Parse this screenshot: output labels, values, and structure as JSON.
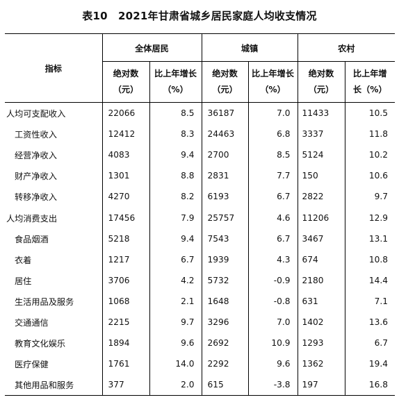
{
  "title": "表10　2021年甘肃省城乡居民家庭人均收支情况",
  "header": {
    "indicator": "指标",
    "groups": [
      "全体居民",
      "城镇",
      "农村"
    ],
    "abs_line1": "绝对数",
    "abs_line2": "（元）",
    "growth_line1": "比上年增长",
    "growth_line2": "（%）",
    "growth_rural_line1": "比上年增",
    "growth_rural_line2": "长（%）"
  },
  "rows": [
    {
      "label": "人均可支配收入",
      "level": 0,
      "all_abs": "22066",
      "all_pct": "8.5",
      "urban_abs": "36187",
      "urban_pct": "7.0",
      "rural_abs": "11433",
      "rural_pct": "10.5"
    },
    {
      "label": "工资性收入",
      "level": 1,
      "all_abs": "12412",
      "all_pct": "8.3",
      "urban_abs": "24463",
      "urban_pct": "6.8",
      "rural_abs": "3337",
      "rural_pct": "11.8"
    },
    {
      "label": "经营净收入",
      "level": 1,
      "all_abs": "4083",
      "all_pct": "9.4",
      "urban_abs": "2700",
      "urban_pct": "8.5",
      "rural_abs": "5124",
      "rural_pct": "10.2"
    },
    {
      "label": "财产净收入",
      "level": 1,
      "all_abs": "1301",
      "all_pct": "8.8",
      "urban_abs": "2831",
      "urban_pct": "7.7",
      "rural_abs": "150",
      "rural_pct": "10.6"
    },
    {
      "label": "转移净收入",
      "level": 1,
      "all_abs": "4270",
      "all_pct": "8.2",
      "urban_abs": "6193",
      "urban_pct": "6.7",
      "rural_abs": "2822",
      "rural_pct": "9.7"
    },
    {
      "label": "人均消费支出",
      "level": 0,
      "all_abs": "17456",
      "all_pct": "7.9",
      "urban_abs": "25757",
      "urban_pct": "4.6",
      "rural_abs": "11206",
      "rural_pct": "12.9"
    },
    {
      "label": "食品烟酒",
      "level": 1,
      "all_abs": "5218",
      "all_pct": "9.4",
      "urban_abs": "7543",
      "urban_pct": "6.7",
      "rural_abs": "3467",
      "rural_pct": "13.1"
    },
    {
      "label": "衣着",
      "level": 1,
      "all_abs": "1217",
      "all_pct": "6.7",
      "urban_abs": "1939",
      "urban_pct": "4.3",
      "rural_abs": "674",
      "rural_pct": "10.8"
    },
    {
      "label": "居住",
      "level": 1,
      "all_abs": "3706",
      "all_pct": "4.2",
      "urban_abs": "5732",
      "urban_pct": "-0.9",
      "rural_abs": "2180",
      "rural_pct": "14.4"
    },
    {
      "label": "生活用品及服务",
      "level": 1,
      "all_abs": "1068",
      "all_pct": "2.1",
      "urban_abs": "1648",
      "urban_pct": "-0.8",
      "rural_abs": "631",
      "rural_pct": "7.1"
    },
    {
      "label": "交通通信",
      "level": 1,
      "all_abs": "2215",
      "all_pct": "9.7",
      "urban_abs": "3296",
      "urban_pct": "7.0",
      "rural_abs": "1402",
      "rural_pct": "13.6"
    },
    {
      "label": "教育文化娱乐",
      "level": 1,
      "all_abs": "1894",
      "all_pct": "9.6",
      "urban_abs": "2692",
      "urban_pct": "10.9",
      "rural_abs": "1293",
      "rural_pct": "6.7"
    },
    {
      "label": "医疗保健",
      "level": 1,
      "all_abs": "1761",
      "all_pct": "14.0",
      "urban_abs": "2292",
      "urban_pct": "9.6",
      "rural_abs": "1362",
      "rural_pct": "19.4"
    },
    {
      "label": "其他用品和服务",
      "level": 1,
      "all_abs": "377",
      "all_pct": "2.0",
      "urban_abs": "615",
      "urban_pct": "-3.8",
      "rural_abs": "197",
      "rural_pct": "16.8"
    }
  ]
}
